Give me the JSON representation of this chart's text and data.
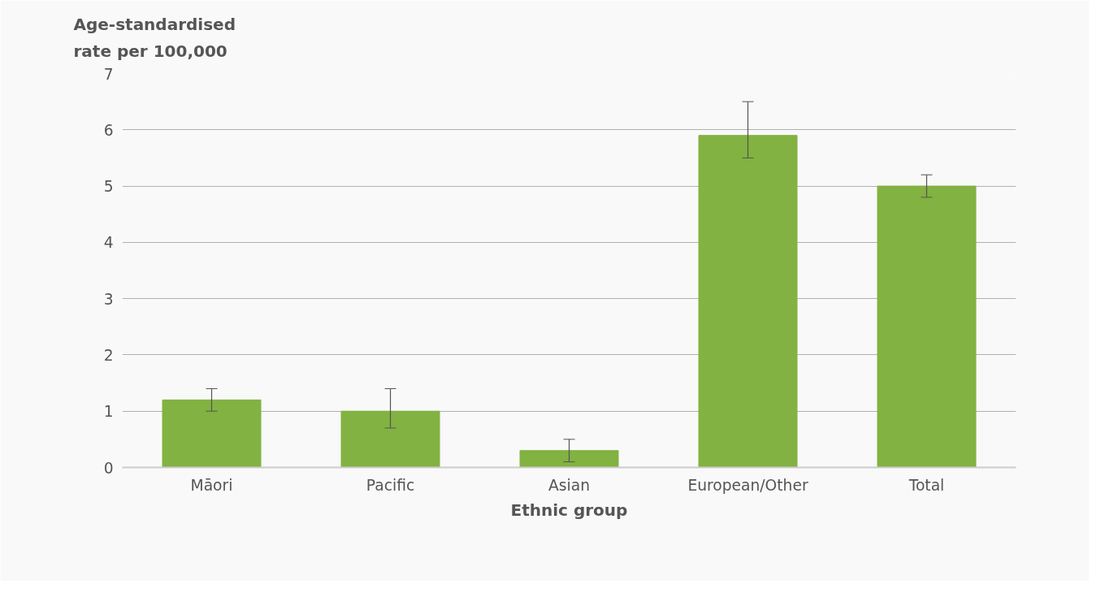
{
  "chart_data": {
    "type": "bar",
    "xlabel": "Ethnic group",
    "ylabel": "Age-standardised rate per 100,000",
    "categories": [
      "Māori",
      "Pacific",
      "Asian",
      "European/Other",
      "Total"
    ],
    "values": [
      1.2,
      1.0,
      0.3,
      5.9,
      5.0
    ],
    "errors": [
      [
        1.0,
        1.4
      ],
      [
        0.7,
        1.4
      ],
      [
        0.1,
        0.5
      ],
      [
        5.5,
        6.5
      ],
      [
        4.8,
        5.2
      ]
    ],
    "color": "#82b241",
    "ylim": [
      0,
      7
    ],
    "yticks": [
      0,
      1,
      2,
      3,
      4,
      5,
      6,
      7
    ],
    "grid": "y"
  }
}
